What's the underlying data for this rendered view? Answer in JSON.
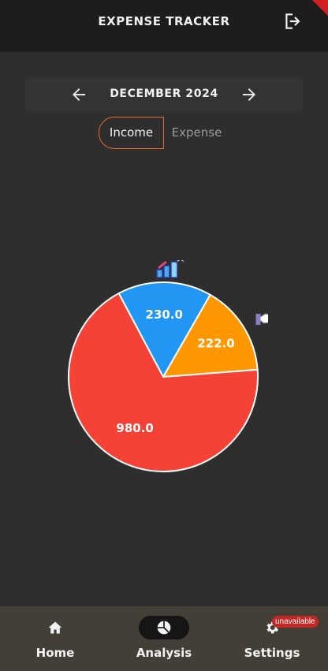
{
  "header": {
    "title": "EXPENSE TRACKER",
    "logout_icon": "logout-icon"
  },
  "month_selector": {
    "label": "DECEMBER 2024",
    "prev_icon": "arrow-left-icon",
    "next_icon": "arrow-right-icon"
  },
  "type_toggle": {
    "options": [
      "Income",
      "Expense"
    ],
    "selected": "Income"
  },
  "chart_data": {
    "type": "pie",
    "values": [
      230.0,
      222.0,
      980.0
    ],
    "data_labels": [
      "230.0",
      "222.0",
      "980.0"
    ],
    "colors": [
      "#2196f3",
      "#ff9800",
      "#f44336"
    ],
    "slice_icons": [
      "growth-chart-icon",
      "hand-money-icon",
      "calendar-money-icon"
    ]
  },
  "bottom_nav": {
    "items": [
      {
        "label": "Home",
        "icon": "home-icon"
      },
      {
        "label": "Analysis",
        "icon": "pie-chart-icon",
        "selected": true
      },
      {
        "label": "Settings",
        "icon": "gear-icon",
        "badge": "unavailable"
      }
    ]
  },
  "colors": {
    "background": "#2e2e2e",
    "topbar": "#1d1d1d",
    "accent": "#e36a2a",
    "nav_bar": "#433e36",
    "badge": "#c62828"
  }
}
